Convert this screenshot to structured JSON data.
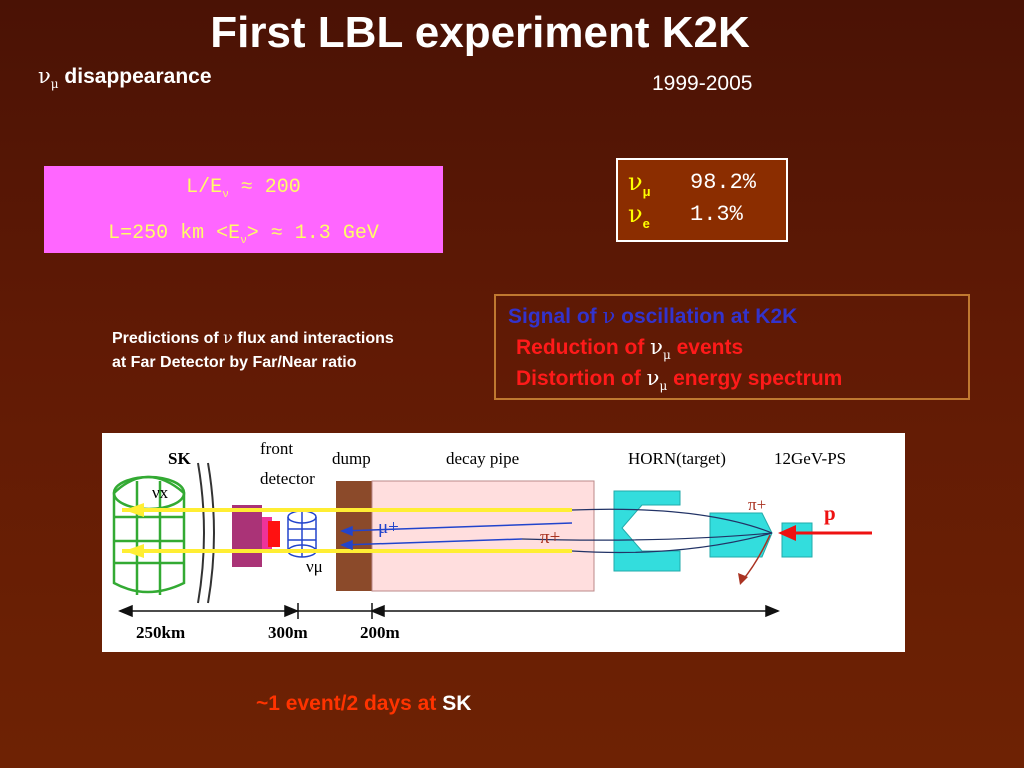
{
  "slide": {
    "title": "First LBL experiment K2K",
    "subtitle": {
      "nu": "ν",
      "sub": "μ",
      "text": " disappearance"
    },
    "years": "1999-2005"
  },
  "params_box": {
    "line1_a": "L/E",
    "line1_sub": "ν",
    "line1_b": " ≈ 200",
    "line2_a": "L=250 km  <E",
    "line2_sub": "ν",
    "line2_b": "> ≈ 1.3 GeV",
    "bg_color": "#ff66ff",
    "text_color": "#ffff66"
  },
  "flavor_fractions": [
    {
      "nu": "ν",
      "sub": "μ",
      "value": "98.2%"
    },
    {
      "nu": "ν",
      "sub": "e",
      "value": "1.3%"
    }
  ],
  "predictions": {
    "line1_a": "Predictions of ",
    "line1_nu": "ν",
    "line1_b": " flux and interactions",
    "line2": "at Far Detector by Far/Near ratio"
  },
  "signal_box": {
    "line1_a": "Signal of ",
    "line1_nu": "ν",
    "line1_b": " oscillation at K2K",
    "line2_a": "Reduction of ",
    "line2_nu": "ν",
    "line2_sub": "μ",
    "line2_b": " events",
    "line3_a": "Distortion of  ",
    "line3_nu": "ν",
    "line3_sub": "μ",
    "line3_b": " energy spectrum"
  },
  "diagram": {
    "labels": {
      "sk": "SK",
      "front": "front",
      "detector": "detector",
      "dump": "dump",
      "decay_pipe": "decay pipe",
      "horn": "HORN(target)",
      "ps": "12GeV-PS",
      "nux": "νx",
      "numu": "νμ",
      "muplus": "μ+",
      "piplus_pipe": "π+",
      "piplus_horn": "π+",
      "proton": "p"
    },
    "distances": [
      "250km",
      "300m",
      "200m"
    ]
  },
  "footer": {
    "text": "~1 event/2 days at ",
    "sk": "SK"
  }
}
